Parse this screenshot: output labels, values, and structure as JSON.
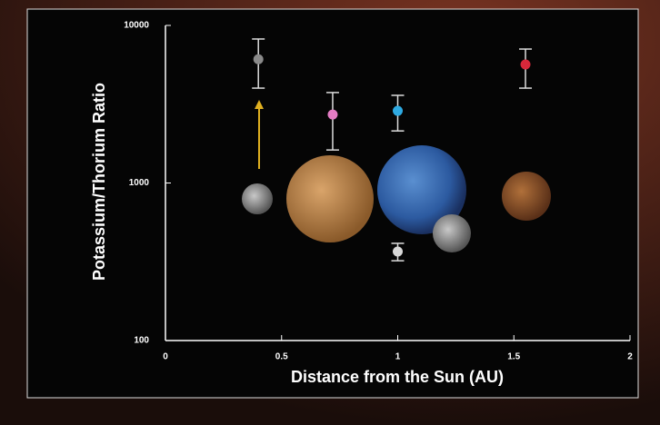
{
  "chart_data": {
    "type": "scatter",
    "xlabel": "Distance from the Sun (AU)",
    "ylabel": "Potassium/Thorium Ratio",
    "x": [
      0.4,
      0.72,
      1.0,
      1.0,
      1.55
    ],
    "values": [
      6100,
      2720,
      2870,
      367,
      5650
    ],
    "lower": [
      4000,
      1620,
      2140,
      321,
      4000
    ],
    "upper": [
      8200,
      3750,
      3600,
      414,
      7080
    ],
    "colors": [
      "#8a8a8a",
      "#e47cc4",
      "#2eaae2",
      "#d8d8d8",
      "#d8283a"
    ],
    "xlim": [
      0,
      2
    ],
    "ylim": [
      100,
      10000
    ],
    "xticks": [
      0,
      0.5,
      1,
      1.5,
      2
    ],
    "yticks": [
      100,
      1000,
      10000
    ],
    "log_y": true
  }
}
